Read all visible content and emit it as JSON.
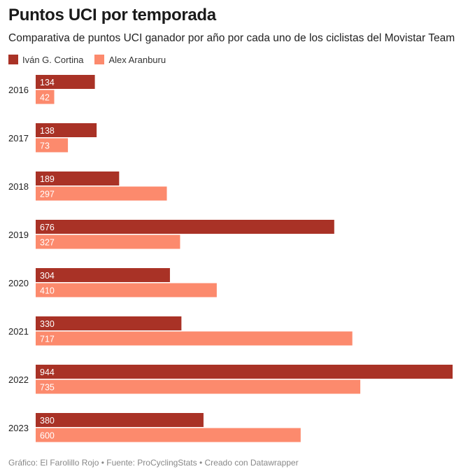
{
  "header": {
    "title": "Puntos UCI por temporada",
    "subtitle": "Comparativa de puntos UCI ganador por año por cada uno de los ciclistas del Movistar Team"
  },
  "legend": {
    "items": [
      {
        "label": "Iván G. Cortina",
        "color": "#a93226"
      },
      {
        "label": "Alex Aranburu",
        "color": "#fc8a6d"
      }
    ]
  },
  "footer": {
    "credit": "Gráfico: El Farolillo Rojo • Fuente: ProCyclingStats • Creado con Datawrapper"
  },
  "chart_data": {
    "type": "bar",
    "orientation": "horizontal",
    "title": "Puntos UCI por temporada",
    "xlabel": "",
    "ylabel": "",
    "xlim": [
      0,
      944
    ],
    "categories": [
      "2016",
      "2017",
      "2018",
      "2019",
      "2020",
      "2021",
      "2022",
      "2023"
    ],
    "series": [
      {
        "name": "Iván G. Cortina",
        "color": "#a93226",
        "values": [
          134,
          138,
          189,
          676,
          304,
          330,
          944,
          380
        ]
      },
      {
        "name": "Alex Aranburu",
        "color": "#fc8a6d",
        "values": [
          42,
          73,
          297,
          327,
          410,
          717,
          735,
          600
        ]
      }
    ],
    "grid": false,
    "legend_position": "top-left"
  }
}
